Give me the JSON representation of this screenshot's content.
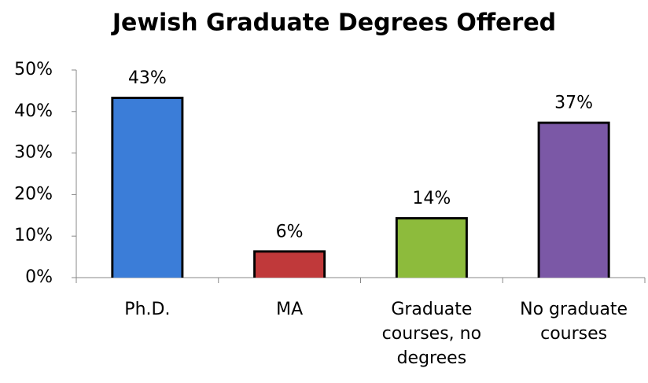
{
  "chart_data": {
    "type": "bar",
    "title": "Jewish Graduate Degrees Offered",
    "categories": [
      "Ph.D.",
      "MA",
      "Graduate courses, no degrees",
      "No graduate courses"
    ],
    "values": [
      43,
      6,
      14,
      37
    ],
    "value_labels": [
      "43%",
      "6%",
      "14%",
      "37%"
    ],
    "colors": [
      "#3b7dd8",
      "#c0393a",
      "#8dbb3c",
      "#7b58a6"
    ],
    "ylim": [
      0,
      50
    ],
    "yticks": [
      {
        "value": 0,
        "label": "0%"
      },
      {
        "value": 10,
        "label": "10%"
      },
      {
        "value": 20,
        "label": "20%"
      },
      {
        "value": 30,
        "label": "30%"
      },
      {
        "value": 40,
        "label": "40%"
      },
      {
        "value": 50,
        "label": "50%"
      }
    ],
    "grid": false
  }
}
